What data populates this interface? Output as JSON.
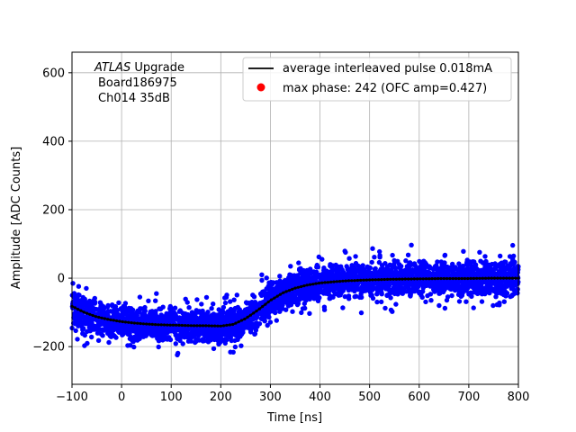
{
  "chart_data": {
    "type": "scatter",
    "title": "",
    "xlabel": "Time [ns]",
    "ylabel": "Amplitude [ADC Counts]",
    "xlim": [
      -100,
      800
    ],
    "ylim": [
      -310,
      660
    ],
    "xticks": [
      -100,
      0,
      100,
      200,
      300,
      400,
      500,
      600,
      700,
      800
    ],
    "yticks": [
      -200,
      0,
      200,
      400,
      600
    ],
    "grid": true,
    "annotation": {
      "line1_italic": "ATLAS",
      "line1_rest": " Upgrade",
      "line2": "Board186975",
      "line3": "Ch014 35dB"
    },
    "legend": {
      "position": "top-right",
      "entries": [
        {
          "label": "average interleaved pulse 0.018mA",
          "marker": "line",
          "color": "#000000"
        },
        {
          "label": "max phase: 242 (OFC amp=0.427)",
          "marker": "dot",
          "color": "#ff0000"
        }
      ]
    },
    "series": [
      {
        "name": "samples",
        "kind": "scatter",
        "color": "#0000ff",
        "spread_sigma": 25,
        "note": "dense scatter of samples distributed around the average pulse"
      },
      {
        "name": "average interleaved pulse 0.018mA",
        "kind": "line",
        "color": "#000000",
        "x": [
          -100,
          -75,
          -50,
          -25,
          0,
          25,
          50,
          75,
          100,
          125,
          150,
          175,
          200,
          225,
          250,
          275,
          300,
          325,
          350,
          375,
          400,
          450,
          500,
          550,
          600,
          650,
          700,
          750,
          800
        ],
        "y": [
          -82,
          -100,
          -113,
          -121,
          -127,
          -131,
          -134,
          -136,
          -137,
          -138,
          -139,
          -139,
          -140,
          -135,
          -118,
          -93,
          -65,
          -43,
          -29,
          -20,
          -14,
          -8,
          -5,
          -3,
          -2,
          -1,
          -1,
          0,
          0
        ]
      }
    ]
  }
}
